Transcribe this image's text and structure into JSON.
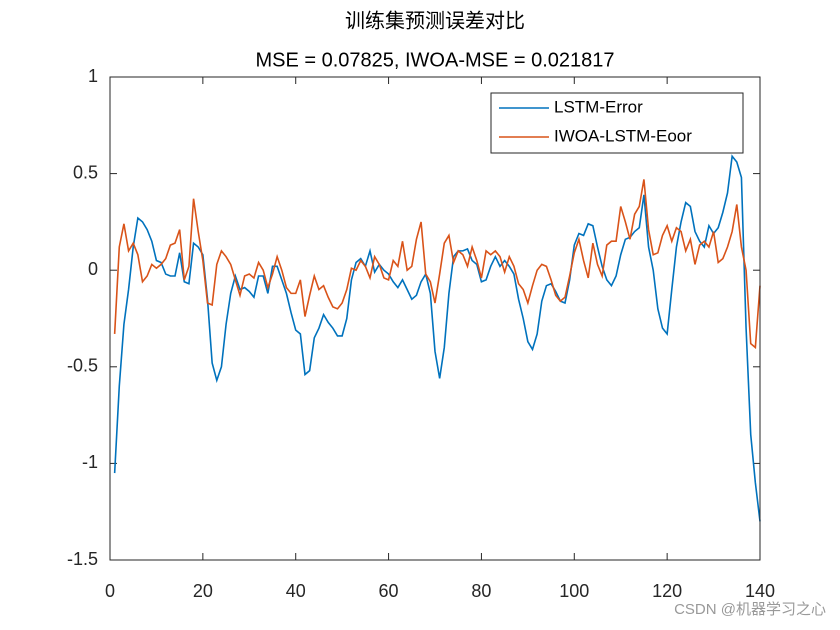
{
  "chart_data": {
    "type": "line",
    "title": "训练集预测误差对比",
    "subtitle": "MSE = 0.07825, IWOA-MSE = 0.021817",
    "x": [
      1,
      2,
      3,
      4,
      5,
      6,
      7,
      8,
      9,
      10,
      11,
      12,
      13,
      14,
      15,
      16,
      17,
      18,
      19,
      20,
      21,
      22,
      23,
      24,
      25,
      26,
      27,
      28,
      29,
      30,
      31,
      32,
      33,
      34,
      35,
      36,
      37,
      38,
      39,
      40,
      41,
      42,
      43,
      44,
      45,
      46,
      47,
      48,
      49,
      50,
      51,
      52,
      53,
      54,
      55,
      56,
      57,
      58,
      59,
      60,
      61,
      62,
      63,
      64,
      65,
      66,
      67,
      68,
      69,
      70,
      71,
      72,
      73,
      74,
      75,
      76,
      77,
      78,
      79,
      80,
      81,
      82,
      83,
      84,
      85,
      86,
      87,
      88,
      89,
      90,
      91,
      92,
      93,
      94,
      95,
      96,
      97,
      98,
      99,
      100,
      101,
      102,
      103,
      104,
      105,
      106,
      107,
      108,
      109,
      110,
      111,
      112,
      113,
      114,
      115,
      116,
      117,
      118,
      119,
      120,
      121,
      122,
      123,
      124,
      125,
      126,
      127,
      128,
      129,
      130,
      131,
      132,
      133,
      134,
      135,
      136,
      137,
      138,
      139,
      140
    ],
    "series": [
      {
        "name": "LSTM-Error",
        "color": "#0072BD",
        "values": [
          -1.05,
          -0.6,
          -0.28,
          -0.1,
          0.12,
          0.27,
          0.25,
          0.21,
          0.15,
          0.05,
          0.04,
          -0.02,
          -0.03,
          -0.03,
          0.09,
          -0.06,
          -0.07,
          0.14,
          0.12,
          0.08,
          -0.15,
          -0.48,
          -0.57,
          -0.5,
          -0.28,
          -0.12,
          -0.03,
          -0.1,
          -0.09,
          -0.11,
          -0.14,
          -0.03,
          -0.03,
          -0.12,
          0.02,
          0.02,
          -0.05,
          -0.12,
          -0.22,
          -0.31,
          -0.33,
          -0.54,
          -0.52,
          -0.35,
          -0.3,
          -0.23,
          -0.27,
          -0.3,
          -0.34,
          -0.34,
          -0.25,
          -0.05,
          0.04,
          0.06,
          0.02,
          0.1,
          -0.01,
          0.03,
          0.0,
          -0.02,
          -0.06,
          -0.09,
          -0.05,
          -0.1,
          -0.15,
          -0.13,
          -0.06,
          -0.02,
          -0.12,
          -0.42,
          -0.56,
          -0.4,
          -0.12,
          0.07,
          0.1,
          0.1,
          0.11,
          0.05,
          0.03,
          -0.06,
          -0.05,
          0.02,
          0.07,
          0.02,
          0.05,
          0.02,
          -0.02,
          -0.15,
          -0.25,
          -0.37,
          -0.41,
          -0.33,
          -0.16,
          -0.08,
          -0.07,
          -0.11,
          -0.16,
          -0.17,
          -0.05,
          0.13,
          0.19,
          0.18,
          0.24,
          0.23,
          0.12,
          0.02,
          -0.05,
          -0.08,
          -0.03,
          0.08,
          0.16,
          0.17,
          0.2,
          0.22,
          0.39,
          0.12,
          0.0,
          -0.2,
          -0.3,
          -0.33,
          -0.1,
          0.12,
          0.25,
          0.35,
          0.33,
          0.2,
          0.15,
          0.12,
          0.23,
          0.19,
          0.22,
          0.3,
          0.4,
          0.59,
          0.56,
          0.48,
          -0.3,
          -0.85,
          -1.1,
          -1.3
        ]
      },
      {
        "name": "IWOA-LSTM-Eoor",
        "color": "#D95319",
        "values": [
          -0.33,
          0.12,
          0.24,
          0.1,
          0.14,
          0.08,
          -0.06,
          -0.03,
          0.03,
          0.01,
          0.03,
          0.06,
          0.13,
          0.14,
          0.21,
          -0.05,
          0.02,
          0.37,
          0.2,
          0.05,
          -0.17,
          -0.18,
          0.03,
          0.1,
          0.07,
          0.03,
          -0.05,
          -0.13,
          -0.03,
          -0.02,
          -0.04,
          0.04,
          0.0,
          -0.09,
          -0.02,
          0.07,
          0.0,
          -0.09,
          -0.12,
          -0.12,
          -0.05,
          -0.24,
          -0.13,
          -0.03,
          -0.1,
          -0.08,
          -0.14,
          -0.19,
          -0.2,
          -0.17,
          -0.1,
          0.01,
          0.0,
          0.05,
          0.02,
          -0.04,
          0.07,
          0.03,
          -0.04,
          -0.05,
          0.05,
          0.02,
          0.15,
          0.0,
          0.02,
          0.16,
          0.25,
          -0.02,
          -0.06,
          -0.17,
          -0.02,
          0.14,
          0.18,
          0.04,
          0.1,
          0.08,
          0.02,
          0.12,
          0.05,
          -0.04,
          0.1,
          0.08,
          0.1,
          0.07,
          -0.01,
          0.07,
          0.02,
          -0.07,
          -0.1,
          -0.17,
          -0.08,
          0.0,
          0.03,
          0.02,
          -0.05,
          -0.13,
          -0.16,
          -0.14,
          -0.03,
          0.09,
          0.16,
          0.05,
          -0.04,
          0.14,
          0.03,
          -0.03,
          0.13,
          0.15,
          0.15,
          0.33,
          0.25,
          0.16,
          0.29,
          0.33,
          0.47,
          0.21,
          0.08,
          0.09,
          0.18,
          0.23,
          0.15,
          0.22,
          0.2,
          0.1,
          0.16,
          0.03,
          0.13,
          0.15,
          0.12,
          0.2,
          0.04,
          0.06,
          0.12,
          0.2,
          0.34,
          0.12,
          0.0,
          -0.38,
          -0.4,
          -0.08
        ]
      }
    ],
    "xlim": [
      0,
      140
    ],
    "xticks": [
      0,
      20,
      40,
      60,
      80,
      100,
      120,
      140
    ],
    "ylim": [
      -1.5,
      1
    ],
    "yticks": [
      -1.5,
      -1,
      -0.5,
      0,
      0.5,
      1
    ],
    "legend": "northeast",
    "grid": false
  },
  "watermark": "CSDN @机器学习之心"
}
